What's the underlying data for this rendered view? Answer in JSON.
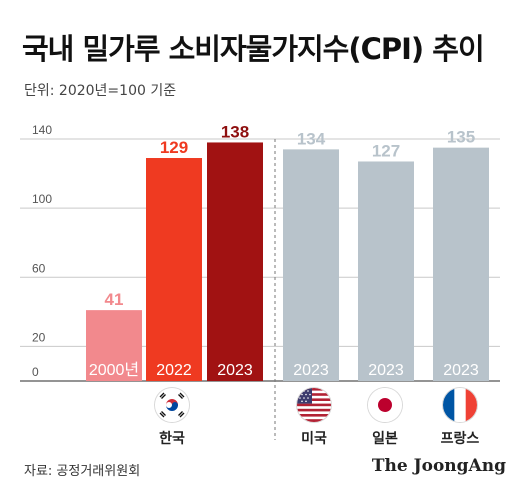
{
  "title": "국내 밀가루 소비자물가지수(CPI) 추이",
  "unit_note": "단위: 2020년=100 기준",
  "source": "자료: 공정거래위원회",
  "brand": "The JoongAng",
  "chart_data": {
    "type": "bar",
    "yticks": [
      0,
      20,
      60,
      100,
      140
    ],
    "ylim": [
      0,
      140
    ],
    "grid": true,
    "bars": [
      {
        "year": "2000년",
        "value": 41,
        "color": "#f2898d",
        "label_color": "#f2898d",
        "group": "kr"
      },
      {
        "year": "2022",
        "value": 129,
        "color": "#ef3a21",
        "label_color": "#ef3a21",
        "group": "kr"
      },
      {
        "year": "2023",
        "value": 138,
        "color": "#a11212",
        "label_color": "#8e0f0f",
        "group": "kr"
      },
      {
        "year": "2023",
        "value": 134,
        "color": "#b8c3cb",
        "label_color": "#b8c3cb",
        "group": "us"
      },
      {
        "year": "2023",
        "value": 127,
        "color": "#b8c3cb",
        "label_color": "#b8c3cb",
        "group": "jp"
      },
      {
        "year": "2023",
        "value": 135,
        "color": "#b8c3cb",
        "label_color": "#b8c3cb",
        "group": "fr"
      }
    ],
    "countries": [
      {
        "name": "한국",
        "flag": "korea-flag-icon"
      },
      {
        "name": "미국",
        "flag": "usa-flag-icon"
      },
      {
        "name": "일본",
        "flag": "japan-flag-icon"
      },
      {
        "name": "프랑스",
        "flag": "france-flag-icon"
      }
    ]
  }
}
